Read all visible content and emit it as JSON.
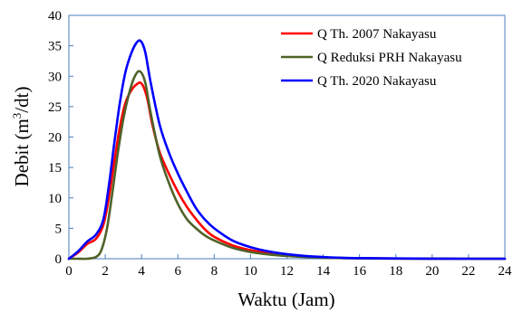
{
  "chart_data": {
    "type": "line",
    "xlabel": "Waktu (Jam)",
    "ylabel_main": "Debit (m",
    "ylabel_sup": "3",
    "ylabel_tail": "/dt)",
    "xlim": [
      0,
      24
    ],
    "ylim": [
      0,
      40
    ],
    "xticks": [
      0,
      2,
      4,
      6,
      8,
      10,
      12,
      14,
      16,
      18,
      20,
      22,
      24
    ],
    "yticks": [
      0,
      5,
      10,
      15,
      20,
      25,
      30,
      35,
      40
    ],
    "grid": false,
    "legend_position": "top-right",
    "series": [
      {
        "name": "Q Th. 2007 Nakayasu",
        "color": "#ff0000",
        "x": [
          0,
          0.5,
          1,
          1.5,
          1.9,
          2.2,
          2.5,
          2.8,
          3.1,
          3.4,
          3.7,
          4,
          4.3,
          4.6,
          5,
          5.5,
          6,
          6.5,
          7,
          7.5,
          8,
          9,
          10,
          11,
          12,
          13,
          14,
          15,
          16,
          18,
          20,
          22,
          24
        ],
        "y": [
          0,
          1,
          2.4,
          3.3,
          5.6,
          10,
          16,
          21.5,
          25.5,
          27.5,
          28.6,
          28.8,
          26.5,
          22,
          17.5,
          14,
          11,
          8.5,
          6.5,
          4.8,
          3.6,
          2.2,
          1.4,
          0.9,
          0.55,
          0.35,
          0.2,
          0.12,
          0.08,
          0.03,
          0.01,
          0,
          0
        ]
      },
      {
        "name": "Q Reduksi PRH Nakayasu",
        "color": "#4f6228",
        "x": [
          0,
          0.5,
          1,
          1.5,
          1.8,
          2.1,
          2.4,
          2.7,
          3,
          3.3,
          3.6,
          3.9,
          4.2,
          4.5,
          5,
          5.5,
          6,
          6.5,
          7,
          7.5,
          8,
          9,
          10,
          11,
          12,
          13,
          14,
          15,
          16,
          18,
          20,
          22,
          24
        ],
        "y": [
          0,
          0,
          0,
          0.3,
          1.5,
          5,
          11,
          17.5,
          23,
          27,
          29.8,
          30.8,
          29,
          24,
          17,
          12.5,
          9,
          6.5,
          5,
          3.8,
          3,
          1.8,
          1.1,
          0.7,
          0.45,
          0.28,
          0.17,
          0.1,
          0.06,
          0.02,
          0.01,
          0,
          0
        ]
      },
      {
        "name": "Q Th. 2020 Nakayasu",
        "color": "#0000ff",
        "x": [
          0,
          0.5,
          1,
          1.5,
          1.9,
          2.2,
          2.5,
          2.8,
          3.1,
          3.4,
          3.7,
          3.95,
          4.2,
          4.5,
          5,
          5.5,
          6,
          6.5,
          7,
          7.5,
          8,
          9,
          10,
          11,
          12,
          13,
          14,
          15,
          16,
          18,
          20,
          22,
          24
        ],
        "y": [
          0,
          1.2,
          2.8,
          4,
          6.5,
          12,
          19,
          25.5,
          30.5,
          33.5,
          35.4,
          35.8,
          34,
          29,
          22,
          17.5,
          14,
          11,
          8.3,
          6.4,
          5,
          3,
          1.9,
          1.2,
          0.75,
          0.45,
          0.28,
          0.16,
          0.1,
          0.04,
          0.01,
          0,
          0
        ]
      }
    ]
  }
}
